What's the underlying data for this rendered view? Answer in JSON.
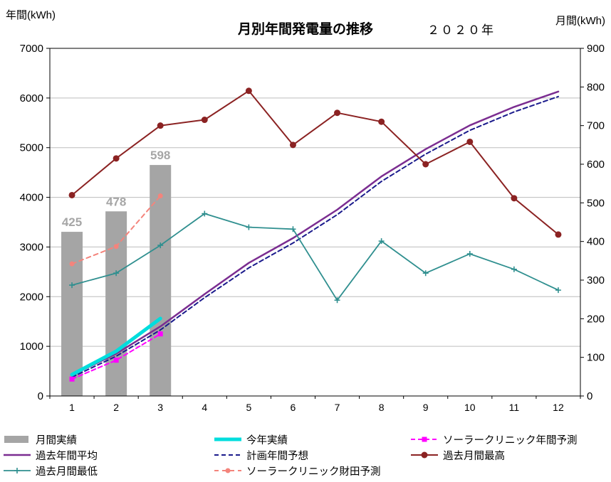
{
  "header": {
    "title": "月別年間発電量の推移",
    "year_label": "２０２０年",
    "left_axis_title": "年間(kWh)",
    "right_axis_title": "月間(kWh)"
  },
  "chart_data": {
    "type": "combo",
    "title": "月別年間発電量の推移",
    "x_labels": [
      "1",
      "2",
      "3",
      "4",
      "5",
      "6",
      "7",
      "8",
      "9",
      "10",
      "11",
      "12"
    ],
    "left_axis": {
      "title": "年間(kWh)",
      "min": 0,
      "max": 7000,
      "ticks": [
        0,
        1000,
        2000,
        3000,
        4000,
        5000,
        6000,
        7000
      ]
    },
    "right_axis": {
      "title": "月間(kWh)",
      "min": 0,
      "max": 900,
      "ticks": [
        0,
        100,
        200,
        300,
        400,
        500,
        600,
        700,
        800,
        900
      ]
    },
    "grid_color": "#bdbdbd",
    "series": [
      {
        "name": "月間実績",
        "type": "bar",
        "axis": "right",
        "color": "#a5a5a5",
        "x": [
          1,
          2,
          3
        ],
        "values": [
          425,
          478,
          598
        ],
        "value_labels": [
          "425",
          "478",
          "598"
        ],
        "label_color": "#a6a6a6"
      },
      {
        "name": "今年実績",
        "type": "line",
        "axis": "left",
        "color": "#00dddd",
        "width": 5,
        "x": [
          1,
          2,
          3
        ],
        "values": [
          430,
          900,
          1560
        ]
      },
      {
        "name": "ソーラークリニック年間予測",
        "type": "line",
        "axis": "left",
        "color": "#ff00ff",
        "width": 2,
        "dash": "6,4",
        "marker": "square",
        "x": [
          1,
          2,
          3
        ],
        "values": [
          340,
          720,
          1250
        ]
      },
      {
        "name": "過去年間平均",
        "type": "line",
        "axis": "left",
        "color": "#7b2d91",
        "width": 2.5,
        "x": [
          1,
          2,
          3,
          4,
          5,
          6,
          7,
          8,
          9,
          10,
          11,
          12
        ],
        "values": [
          420,
          850,
          1400,
          2050,
          2680,
          3180,
          3750,
          4420,
          4970,
          5450,
          5820,
          6130
        ]
      },
      {
        "name": "計画年間予想",
        "type": "line",
        "axis": "left",
        "color": "#1a1a8c",
        "width": 2,
        "dash": "6,4",
        "x": [
          1,
          2,
          3,
          4,
          5,
          6,
          7,
          8,
          9,
          10,
          11,
          12
        ],
        "values": [
          380,
          800,
          1330,
          1980,
          2580,
          3080,
          3650,
          4320,
          4870,
          5350,
          5720,
          6030
        ]
      },
      {
        "name": "過去月間最高",
        "type": "line",
        "axis": "right",
        "color": "#8b2222",
        "width": 2,
        "marker": "circle",
        "marker_size": 4.5,
        "x": [
          1,
          2,
          3,
          4,
          5,
          6,
          7,
          8,
          9,
          10,
          11,
          12
        ],
        "values": [
          520,
          615,
          700,
          715,
          790,
          650,
          733,
          710,
          600,
          658,
          512,
          418
        ]
      },
      {
        "name": "過去月間最低",
        "type": "line",
        "axis": "right",
        "color": "#2f8f8f",
        "width": 1.8,
        "marker": "plus",
        "x": [
          1,
          2,
          3,
          4,
          5,
          6,
          7,
          8,
          9,
          10,
          11,
          12
        ],
        "values": [
          287,
          318,
          390,
          472,
          437,
          432,
          248,
          401,
          318,
          368,
          328,
          274
        ]
      },
      {
        "name": "ソーラークリニック財田予測",
        "type": "line",
        "axis": "right",
        "color": "#f4847c",
        "width": 2,
        "dash": "6,5",
        "marker": "circle",
        "marker_size": 3.5,
        "x": [
          1,
          2,
          3
        ],
        "values": [
          342,
          387,
          518
        ]
      }
    ],
    "draw_order": [
      0,
      3,
      4,
      5,
      6,
      7,
      1,
      2
    ]
  }
}
